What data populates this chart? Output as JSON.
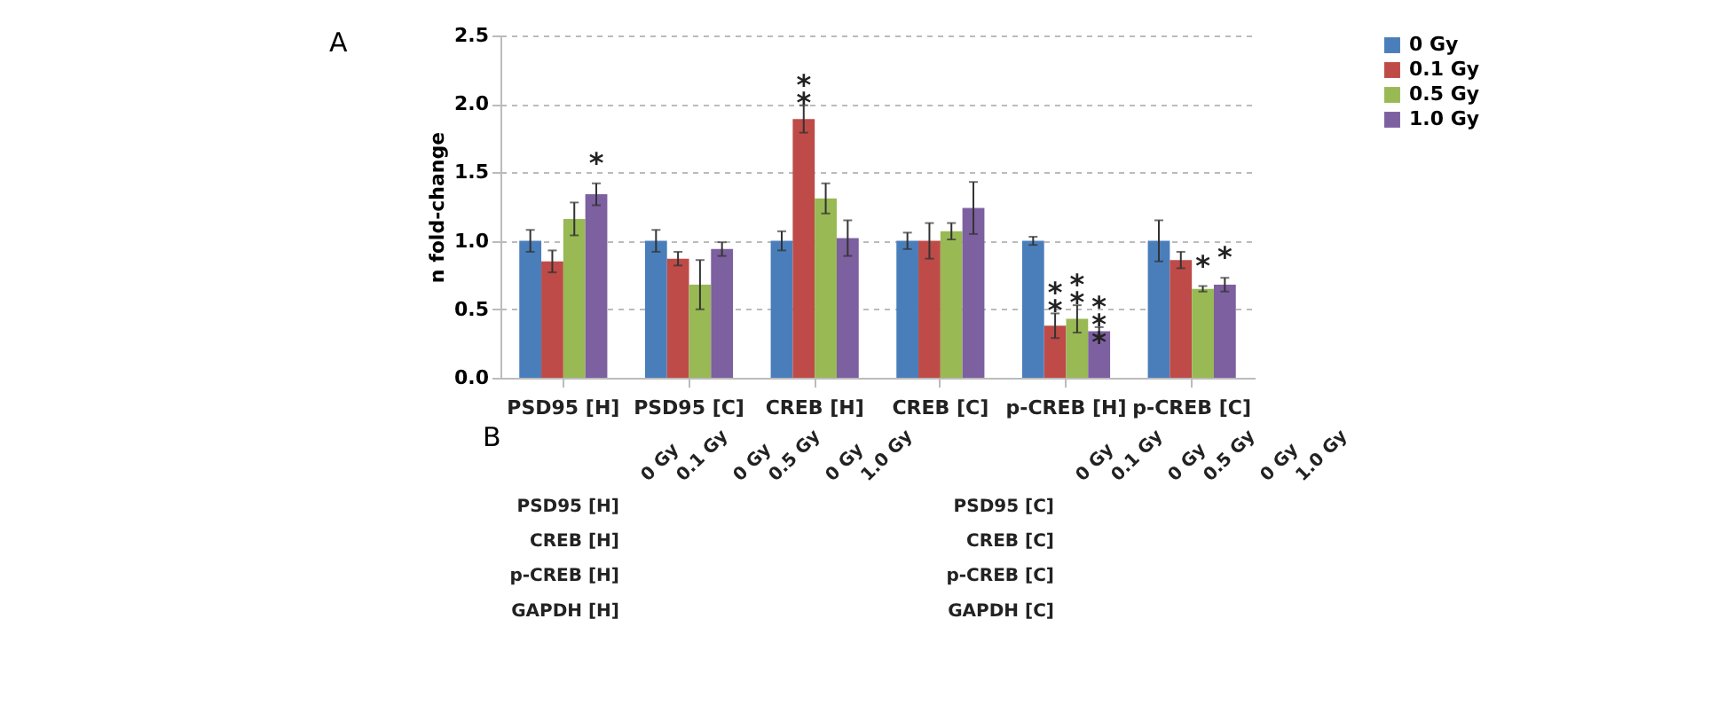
{
  "chart_data": [
    {
      "type": "bar",
      "title": "A",
      "ylabel": "n fold-change",
      "categories": [
        "PSD95 [H]",
        "PSD95 [C]",
        "CREB [H]",
        "CREB [C]",
        "p-CREB [H]",
        "p-CREB [C]"
      ],
      "series": [
        {
          "name": "0 Gy",
          "color": "#4a7ebb",
          "values": [
            1.0,
            1.0,
            1.0,
            1.0,
            1.0,
            1.0
          ],
          "errors": [
            0.08,
            0.08,
            0.07,
            0.06,
            0.03,
            0.15
          ]
        },
        {
          "name": "0.1 Gy",
          "color": "#be4b48",
          "values": [
            0.85,
            0.87,
            1.89,
            1.0,
            0.38,
            0.86
          ],
          "errors": [
            0.08,
            0.05,
            0.1,
            0.13,
            0.09,
            0.06
          ],
          "value_labels": [
            null,
            null,
            "**",
            null,
            "**",
            null
          ]
        },
        {
          "name": "0.5 Gy",
          "color": "#98b954",
          "values": [
            1.16,
            0.68,
            1.31,
            1.07,
            0.43,
            0.65
          ],
          "errors": [
            0.12,
            0.18,
            0.11,
            0.06,
            0.1,
            0.02
          ],
          "value_labels": [
            null,
            null,
            null,
            null,
            "**",
            "*"
          ]
        },
        {
          "name": "1.0 Gy",
          "color": "#7d60a0",
          "values": [
            1.34,
            0.94,
            1.02,
            1.24,
            0.34,
            0.68
          ],
          "errors": [
            0.08,
            0.05,
            0.13,
            0.19,
            0.03,
            0.05
          ],
          "value_labels": [
            "*",
            null,
            null,
            null,
            "***",
            "*"
          ]
        }
      ],
      "ylim": [
        0,
        2.5
      ],
      "yticks": [
        {
          "value": 0,
          "label": "0.0"
        },
        {
          "value": 0.5,
          "label": "0.5"
        },
        {
          "value": 1,
          "label": "1.0"
        },
        {
          "value": 1.5,
          "label": "1.5"
        },
        {
          "value": 2,
          "label": "2.0"
        },
        {
          "value": 2.5,
          "label": "2.5"
        }
      ],
      "grid": "y",
      "legend": "top right"
    },
    {
      "type": "other",
      "title": "B",
      "annotations": [
        "0 Gy",
        "0.1 Gy",
        "0 Gy",
        "0.5 Gy",
        "0 Gy",
        "1.0 Gy",
        "PSD95 [H]",
        "CREB [H]",
        "p-CREB [H]",
        "GAPDH [H]",
        "0 Gy",
        "0.1 Gy",
        "0 Gy",
        "0.5 Gy",
        "0 Gy",
        "1.0 Gy",
        "PSD95 [C]",
        "CREB [C]",
        "p-CREB [C]",
        "GAPDH [C]"
      ]
    }
  ]
}
